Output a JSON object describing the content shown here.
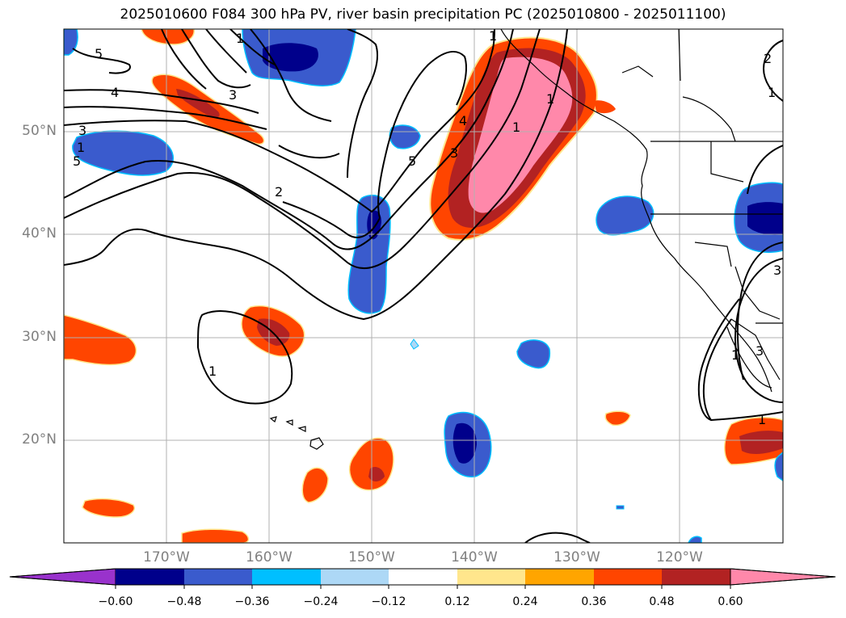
{
  "title": "2025010600 F084 300 hPa PV, river basin precipitation PC (2025010800 - 2025011100)",
  "lon_labels": [
    "170°W",
    "160°W",
    "150°W",
    "140°W",
    "130°W",
    "120°W"
  ],
  "lat_labels": [
    "50°N",
    "40°N",
    "30°N",
    "20°N"
  ],
  "contour_labels": [
    "5",
    "4",
    "3",
    "1",
    "5",
    "2",
    "3",
    "1",
    "1",
    "1",
    "2",
    "1",
    "3",
    "1",
    "1",
    "3",
    "5",
    "1",
    "4",
    "1",
    "3"
  ],
  "colorbar": {
    "labels": [
      "−0.60",
      "−0.48",
      "−0.36",
      "−0.24",
      "−0.12",
      "0.12",
      "0.24",
      "0.36",
      "0.48",
      "0.60"
    ],
    "colors": [
      "#9932cc",
      "#00008b",
      "#3a5bcd",
      "#00bfff",
      "#add8f6",
      "#ffffff",
      "#ffe68c",
      "#ffa500",
      "#ff4500",
      "#b22222",
      "#ff88aa"
    ]
  },
  "map_extent": {
    "lon": [
      -180,
      -110
    ],
    "lat": [
      10,
      60
    ]
  }
}
